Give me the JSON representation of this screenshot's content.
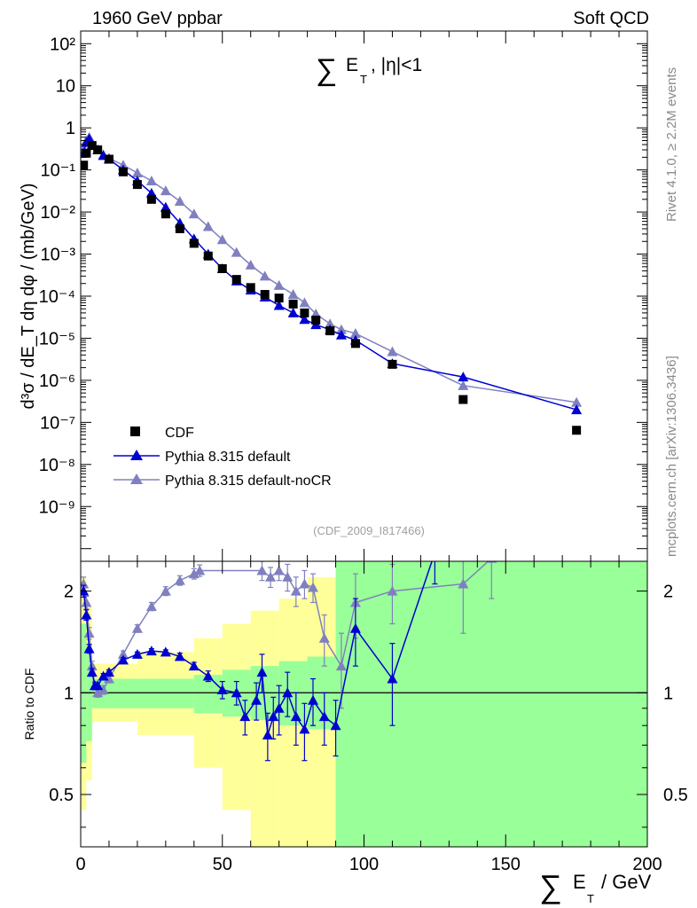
{
  "header": {
    "left": "1960 GeV ppbar",
    "right": "Soft QCD"
  },
  "side_labels": {
    "rivet": "Rivet 4.1.0, ≥ 2.2M events",
    "mcplots": "mcplots.cern.ch [arXiv:1306.3436]"
  },
  "chart_data": [
    {
      "type": "scatter",
      "title": "∑ E_T , |η|<1",
      "analysis_id": "(CDF_2009_I817466)",
      "yscale": "log",
      "ylabel": "d³σ / dE_T dη dφ / (mb/GeV)",
      "xlim": [
        0,
        200
      ],
      "ylim": [
        5e-11,
        200
      ],
      "y_tick_labels": [
        "10⁻⁹",
        "10⁻⁸",
        "10⁻⁷",
        "10⁻⁶",
        "10⁻⁵",
        "10⁻⁴",
        "10⁻³",
        "10⁻²",
        "10⁻¹",
        "1",
        "10",
        "10²"
      ],
      "legend": [
        {
          "label": "CDF",
          "color": "#000000",
          "marker": "square"
        },
        {
          "label": "Pythia 8.315 default",
          "color": "#0000d0",
          "marker": "triangle"
        },
        {
          "label": "Pythia 8.315 default-noCR",
          "color": "#8080c0",
          "marker": "triangle"
        }
      ],
      "series": [
        {
          "name": "CDF",
          "x": [
            1,
            2,
            4,
            6,
            10,
            15,
            20,
            25,
            30,
            35,
            40,
            45,
            50,
            55,
            60,
            65,
            70,
            75,
            79,
            83,
            88,
            97,
            110,
            135,
            175
          ],
          "y": [
            0.13,
            0.25,
            0.38,
            0.3,
            0.18,
            0.09,
            0.045,
            0.02,
            0.009,
            0.004,
            0.0018,
            0.0009,
            0.00045,
            0.00025,
            0.00016,
            0.00011,
            9e-05,
            6.5e-05,
            4e-05,
            2.7e-05,
            1.5e-05,
            7.5e-06,
            2.4e-06,
            3.5e-07,
            6.5e-08
          ]
        },
        {
          "name": "Pythia 8.315 default",
          "x": [
            1,
            2,
            3,
            4,
            6,
            8,
            10,
            15,
            20,
            25,
            30,
            35,
            40,
            45,
            50,
            55,
            60,
            65,
            70,
            75,
            79,
            83,
            88,
            92,
            97,
            110,
            135,
            175
          ],
          "y": [
            0.25,
            0.45,
            0.55,
            0.4,
            0.3,
            0.22,
            0.18,
            0.1,
            0.055,
            0.028,
            0.013,
            0.0055,
            0.0023,
            0.001,
            0.00045,
            0.00023,
            0.00014,
            9.5e-05,
            6e-05,
            4e-05,
            2.8e-05,
            2.1e-05,
            1.6e-05,
            1.2e-05,
            9e-06,
            2.5e-06,
            1.2e-06,
            2e-07
          ]
        },
        {
          "name": "Pythia 8.315 default-noCR",
          "x": [
            1,
            2,
            3,
            4,
            6,
            8,
            10,
            15,
            20,
            25,
            30,
            35,
            40,
            45,
            50,
            55,
            60,
            65,
            70,
            75,
            79,
            83,
            88,
            92,
            97,
            110,
            135,
            175
          ],
          "y": [
            0.3,
            0.5,
            0.6,
            0.45,
            0.3,
            0.23,
            0.19,
            0.13,
            0.085,
            0.055,
            0.032,
            0.018,
            0.009,
            0.0045,
            0.0022,
            0.0011,
            0.00055,
            0.0003,
            0.00018,
            0.00011,
            7e-05,
            3.8e-05,
            2.2e-05,
            1.6e-05,
            1.3e-05,
            4.8e-06,
            7.5e-07,
            3e-07
          ]
        }
      ]
    },
    {
      "type": "line",
      "ylabel": "Ratio to CDF",
      "xlabel": "∑ E_T / GeV",
      "yscale": "log",
      "xlim": [
        0,
        200
      ],
      "ylim": [
        0.35,
        2.45
      ],
      "x_ticks": [
        0,
        50,
        100,
        150,
        200
      ],
      "y_ticks": [
        0.5,
        1,
        2
      ],
      "reference": 1,
      "bands": {
        "green_1sigma": [
          {
            "x": [
              0,
              2
            ],
            "lo": 0.62,
            "hi": 1.6
          },
          {
            "x": [
              2,
              4
            ],
            "lo": 0.72,
            "hi": 1.4
          },
          {
            "x": [
              4,
              40
            ],
            "lo": 0.9,
            "hi": 1.1
          },
          {
            "x": [
              40,
              50
            ],
            "lo": 0.87,
            "hi": 1.13
          },
          {
            "x": [
              50,
              60
            ],
            "lo": 0.85,
            "hi": 1.17
          },
          {
            "x": [
              60,
              70
            ],
            "lo": 0.83,
            "hi": 1.2
          },
          {
            "x": [
              70,
              80
            ],
            "lo": 0.8,
            "hi": 1.24
          },
          {
            "x": [
              80,
              90
            ],
            "lo": 0.78,
            "hi": 1.28
          },
          {
            "x": [
              90,
              200
            ],
            "lo": 0.3,
            "hi": 2.6
          }
        ],
        "yellow_2sigma": [
          {
            "x": [
              0,
              2
            ],
            "lo": 0.45,
            "hi": 2.2
          },
          {
            "x": [
              2,
              4
            ],
            "lo": 0.55,
            "hi": 1.8
          },
          {
            "x": [
              4,
              20
            ],
            "lo": 0.82,
            "hi": 1.22
          },
          {
            "x": [
              20,
              40
            ],
            "lo": 0.75,
            "hi": 1.32
          },
          {
            "x": [
              40,
              50
            ],
            "lo": 0.6,
            "hi": 1.45
          },
          {
            "x": [
              50,
              60
            ],
            "lo": 0.45,
            "hi": 1.6
          },
          {
            "x": [
              60,
              70
            ],
            "lo": 0.35,
            "hi": 1.75
          },
          {
            "x": [
              70,
              80
            ],
            "lo": 0.35,
            "hi": 1.9
          },
          {
            "x": [
              80,
              90
            ],
            "lo": 0.35,
            "hi": 2.2
          },
          {
            "x": [
              90,
              120
            ],
            "lo": 0.3,
            "hi": 2.6
          }
        ]
      },
      "series": [
        {
          "name": "Pythia 8.315 default",
          "x": [
            1,
            2,
            3,
            4,
            5,
            6,
            8,
            10,
            15,
            20,
            25,
            30,
            35,
            40,
            45,
            50,
            55,
            58,
            62,
            64,
            66,
            68,
            70,
            73,
            76,
            79,
            82,
            86,
            90,
            97,
            110,
            125
          ],
          "y": [
            2.0,
            1.7,
            1.35,
            1.15,
            1.05,
            1.05,
            1.12,
            1.15,
            1.25,
            1.3,
            1.33,
            1.32,
            1.28,
            1.2,
            1.12,
            1.02,
            1.0,
            0.85,
            0.95,
            1.15,
            0.75,
            0.85,
            0.9,
            1.0,
            0.85,
            0.78,
            0.95,
            0.85,
            0.8,
            1.55,
            1.1,
            2.6
          ],
          "err": [
            0.08,
            0.06,
            0.04,
            0.03,
            0.02,
            0.02,
            0.02,
            0.02,
            0.02,
            0.02,
            0.02,
            0.02,
            0.03,
            0.03,
            0.04,
            0.06,
            0.08,
            0.1,
            0.12,
            0.15,
            0.12,
            0.12,
            0.15,
            0.15,
            0.15,
            0.15,
            0.15,
            0.15,
            0.15,
            0.35,
            0.3,
            0.5
          ]
        },
        {
          "name": "Pythia 8.315 default-noCR",
          "x": [
            1,
            2,
            3,
            4,
            5,
            6,
            8,
            10,
            15,
            20,
            25,
            30,
            35,
            40,
            42,
            64,
            67,
            70,
            73,
            76,
            79,
            82,
            86,
            92,
            97,
            110,
            135,
            145
          ],
          "y": [
            2.1,
            1.85,
            1.5,
            1.2,
            1.05,
            1.0,
            1.02,
            1.1,
            1.3,
            1.55,
            1.8,
            2.0,
            2.15,
            2.25,
            2.3,
            2.3,
            2.2,
            2.3,
            2.2,
            2.0,
            2.1,
            2.05,
            1.45,
            1.2,
            1.85,
            2.0,
            2.1,
            2.5
          ],
          "err": [
            0.1,
            0.08,
            0.06,
            0.04,
            0.03,
            0.03,
            0.03,
            0.03,
            0.03,
            0.04,
            0.05,
            0.06,
            0.07,
            0.08,
            0.09,
            0.15,
            0.15,
            0.15,
            0.2,
            0.2,
            0.2,
            0.2,
            0.25,
            0.3,
            0.4,
            0.4,
            0.6,
            0.6
          ]
        }
      ]
    }
  ]
}
